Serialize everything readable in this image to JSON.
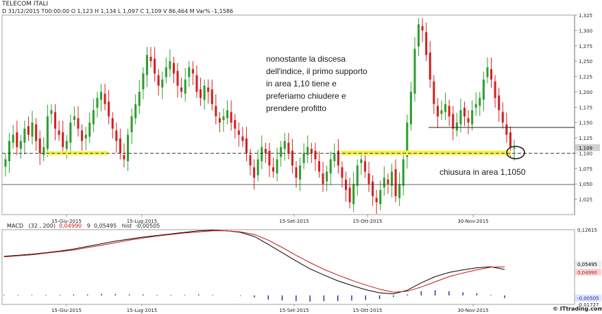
{
  "header": {
    "symbol": "TELECOM ITALI",
    "ohlc": "D 31/12/2015  T00:00:00  O 1,123  H 1,134  L 1,097  C 1,109  V 86,464 M  Var% -1,1586"
  },
  "annotations": {
    "main_note_lines": [
      "nonostante la discesa",
      "dell'indice, il primo supporto",
      "in area 1,10 tiene e",
      "preferiamo chiudere e",
      "prendere profitto"
    ],
    "close_note": "chiusura in area 1,1050"
  },
  "macd_header": {
    "label": "MACD",
    "params": "(32 , 200)",
    "macd_value": "0,04990",
    "signal_label": "9",
    "signal_value": "0,05495",
    "hist_label": "hist",
    "hist_value": "-0,00505"
  },
  "watermark": "© ITtrading.com",
  "colors": {
    "up": "#2e9e2e",
    "down": "#d42020",
    "highlight": "#f6f24a",
    "macd_line": "#000000",
    "signal_line": "#cc1111",
    "hist": "#1c2a8c"
  },
  "chart_data": [
    {
      "type": "candlestick",
      "ylim": [
        1.0,
        1.325
      ],
      "yticks": [
        "1,325",
        "1,300",
        "1,275",
        "1,250",
        "1,225",
        "1,200",
        "1,175",
        "1,150",
        "1,125",
        "1,100",
        "1,075",
        "1,050",
        "1,025"
      ],
      "xticks": [
        "15-Giu-2015",
        "15-Lug-2015",
        "15-Set-2015",
        "15-Ott-2015",
        "30-Nov-2015"
      ],
      "last_price": "1,109",
      "support_level": 1.1,
      "support_line_level": 1.049,
      "resistance_level": 1.142,
      "close": [
        1.09,
        1.12,
        1.13,
        1.11,
        1.12,
        1.14,
        1.13,
        1.15,
        1.12,
        1.1,
        1.11,
        1.16,
        1.17,
        1.14,
        1.13,
        1.11,
        1.12,
        1.15,
        1.16,
        1.14,
        1.12,
        1.13,
        1.15,
        1.17,
        1.19,
        1.2,
        1.18,
        1.16,
        1.14,
        1.12,
        1.1,
        1.09,
        1.13,
        1.16,
        1.18,
        1.2,
        1.23,
        1.26,
        1.25,
        1.23,
        1.21,
        1.22,
        1.24,
        1.25,
        1.23,
        1.21,
        1.2,
        1.22,
        1.24,
        1.23,
        1.2,
        1.19,
        1.21,
        1.2,
        1.18,
        1.16,
        1.15,
        1.16,
        1.17,
        1.15,
        1.14,
        1.13,
        1.12,
        1.1,
        1.08,
        1.06,
        1.09,
        1.11,
        1.1,
        1.08,
        1.07,
        1.09,
        1.11,
        1.12,
        1.1,
        1.08,
        1.06,
        1.08,
        1.1,
        1.11,
        1.1,
        1.09,
        1.07,
        1.05,
        1.07,
        1.09,
        1.1,
        1.08,
        1.06,
        1.04,
        1.02,
        1.05,
        1.08,
        1.09,
        1.07,
        1.05,
        1.03,
        1.02,
        1.04,
        1.06,
        1.05,
        1.07,
        1.03,
        1.05,
        1.09,
        1.15,
        1.2,
        1.27,
        1.31,
        1.3,
        1.26,
        1.22,
        1.18,
        1.16,
        1.17,
        1.18,
        1.16,
        1.14,
        1.15,
        1.17,
        1.16,
        1.15,
        1.17,
        1.18,
        1.19,
        1.22,
        1.24,
        1.22,
        1.19,
        1.17,
        1.15,
        1.13,
        1.11,
        1.109
      ]
    },
    {
      "type": "line",
      "title": "MACD",
      "ylim": [
        -0.01727,
        0.12615
      ],
      "yticks": [
        "0,12615",
        "-0,01727"
      ],
      "value_tags": [
        "0,05495",
        "0,04990",
        "-0,00505"
      ],
      "series": [
        {
          "name": "MACD",
          "values": [
            0.075,
            0.077,
            0.079,
            0.082,
            0.085,
            0.089,
            0.094,
            0.099,
            0.104,
            0.108,
            0.112,
            0.115,
            0.118,
            0.121,
            0.124,
            0.125,
            0.124,
            0.121,
            0.113,
            0.098,
            0.082,
            0.066,
            0.051,
            0.039,
            0.028,
            0.019,
            0.011,
            0.005,
            0.003,
            0.01,
            0.024,
            0.036,
            0.044,
            0.049,
            0.053,
            0.055,
            0.0499
          ]
        },
        {
          "name": "9",
          "values": [
            0.074,
            0.076,
            0.078,
            0.081,
            0.084,
            0.087,
            0.092,
            0.096,
            0.101,
            0.106,
            0.11,
            0.114,
            0.117,
            0.12,
            0.122,
            0.124,
            0.124,
            0.122,
            0.117,
            0.106,
            0.092,
            0.077,
            0.063,
            0.05,
            0.039,
            0.029,
            0.02,
            0.012,
            0.006,
            0.008,
            0.016,
            0.026,
            0.036,
            0.043,
            0.049,
            0.054,
            0.05495
          ]
        },
        {
          "name": "hist",
          "values": [
            0.001,
            0.001,
            0.001,
            0.001,
            0.001,
            0.002,
            0.002,
            0.003,
            0.003,
            0.002,
            0.002,
            0.001,
            0.001,
            0.001,
            0.002,
            0.001,
            0.0,
            -0.001,
            -0.004,
            -0.008,
            -0.01,
            -0.011,
            -0.012,
            -0.011,
            -0.011,
            -0.01,
            -0.009,
            -0.007,
            -0.003,
            0.002,
            0.008,
            0.01,
            0.008,
            0.006,
            0.004,
            0.001,
            -0.00505
          ]
        }
      ]
    }
  ]
}
